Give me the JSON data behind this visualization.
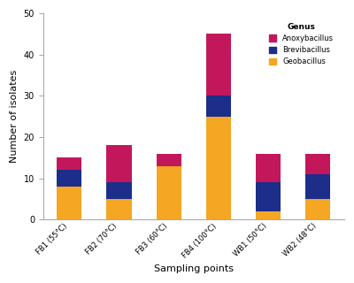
{
  "categories": [
    "FB1 (55°C)",
    "FB2 (70°C)",
    "FB3 (60°C)",
    "FB4 (100°C)",
    "WB1 (50°C)",
    "WB2 (48°C)"
  ],
  "geobacillus": [
    8,
    5,
    13,
    25,
    2,
    5
  ],
  "brevibacillus": [
    4,
    4,
    0,
    5,
    7,
    6
  ],
  "anoxybacillus": [
    3,
    9,
    3,
    15,
    7,
    5
  ],
  "color_geo": "#F5A623",
  "color_brev": "#1C2D8A",
  "color_anox": "#C2185B",
  "xlabel": "Sampling points",
  "ylabel": "Number of isolates",
  "legend_title": "Genus",
  "ylim": [
    0,
    50
  ],
  "yticks": [
    0,
    10,
    20,
    30,
    40,
    50
  ],
  "bg_color": "#ffffff",
  "spine_color": "#aaaaaa",
  "bar_width": 0.5
}
